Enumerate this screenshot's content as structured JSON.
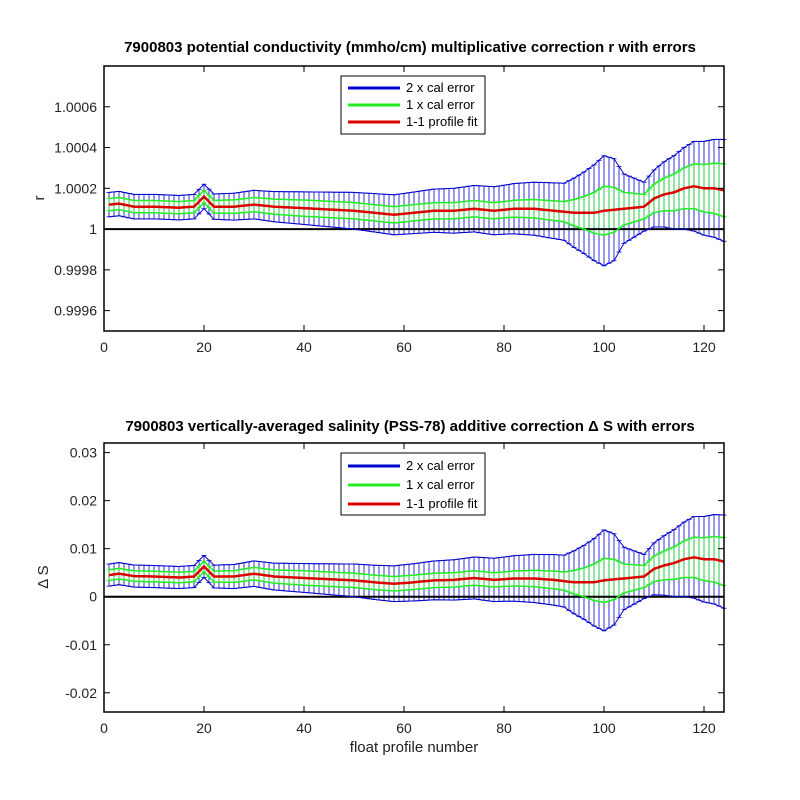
{
  "chart_data": [
    {
      "type": "line",
      "title": "7900803 potential conductivity (mmho/cm) multiplicative correction r with errors",
      "xlabel": "",
      "ylabel": "r",
      "xlim": [
        0,
        124
      ],
      "ylim": [
        0.9995,
        1.0008
      ],
      "xticks": [
        0,
        20,
        40,
        60,
        80,
        100,
        120
      ],
      "xtick_labels": [
        "0",
        "20",
        "40",
        "60",
        "80",
        "100",
        "120"
      ],
      "yticks": [
        0.9996,
        0.9998,
        1,
        1.0002,
        1.0004,
        1.0006
      ],
      "ytick_labels": [
        "0.9996",
        "0.9998",
        "1",
        "1.0002",
        "1.0004",
        "1.0006"
      ],
      "reference_line": 1,
      "legend": {
        "placement": "top-center"
      },
      "fit_control_points": {
        "x": [
          1,
          3,
          6,
          10,
          15,
          18,
          20,
          22,
          26,
          30,
          34,
          38,
          42,
          46,
          50,
          54,
          58,
          62,
          66,
          70,
          74,
          78,
          82,
          86,
          90,
          94,
          98,
          100,
          104,
          108,
          110,
          112,
          114,
          116,
          118,
          120,
          122,
          124
        ],
        "y": [
          1.00012,
          1.000125,
          1.00011,
          1.00011,
          1.000105,
          1.00011,
          1.00016,
          1.00011,
          1.00011,
          1.00012,
          1.00011,
          1.000105,
          1.0001,
          1.000095,
          1.00009,
          1.00008,
          1.00007,
          1.00008,
          1.00009,
          1.00009,
          1.0001,
          1.00009,
          1.0001,
          1.0001,
          1.00009,
          1.00008,
          1.00008,
          1.00009,
          1.0001,
          1.00011,
          1.00015,
          1.00017,
          1.00018,
          1.0002,
          1.00021,
          1.0002,
          1.0002,
          1.00019
        ]
      },
      "err1_control_points": {
        "x": [
          1,
          20,
          40,
          60,
          80,
          92,
          96,
          100,
          102,
          104,
          108,
          112,
          118,
          124
        ],
        "y": [
          3e-05,
          3e-05,
          4e-05,
          4e-05,
          4e-05,
          5e-05,
          8e-05,
          0.00012,
          0.00011,
          8e-05,
          6e-05,
          8e-05,
          0.00011,
          0.00013
        ]
      },
      "err2_control_points": {
        "x": [
          1,
          20,
          40,
          60,
          80,
          92,
          96,
          100,
          102,
          104,
          108,
          112,
          118,
          124
        ],
        "y": [
          6e-05,
          6e-05,
          8e-05,
          0.0001,
          0.00012,
          0.00014,
          0.0002,
          0.00027,
          0.00025,
          0.00017,
          0.00012,
          0.00016,
          0.00022,
          0.00025
        ]
      },
      "series": [
        {
          "name": "2 x cal error",
          "color": "#0000cc"
        },
        {
          "name": "1 x cal error",
          "color": "#22ee22"
        },
        {
          "name": "1-1 profile fit",
          "color": "#dd0000"
        }
      ]
    },
    {
      "type": "line",
      "title": "7900803 vertically-averaged salinity (PSS-78) additive correction Δ S with errors",
      "xlabel": "float profile number",
      "ylabel": "Δ S",
      "xlim": [
        0,
        124
      ],
      "ylim": [
        -0.024,
        0.032
      ],
      "xticks": [
        0,
        20,
        40,
        60,
        80,
        100,
        120
      ],
      "xtick_labels": [
        "0",
        "20",
        "40",
        "60",
        "80",
        "100",
        "120"
      ],
      "yticks": [
        -0.02,
        -0.01,
        0,
        0.01,
        0.02,
        0.03
      ],
      "ytick_labels": [
        "-0.02",
        "-0.01",
        "0",
        "0.01",
        "0.02",
        "0.03"
      ],
      "reference_line": 0,
      "legend": {
        "placement": "top-center"
      },
      "fit_control_points": {
        "x": [
          1,
          3,
          6,
          10,
          15,
          18,
          20,
          22,
          26,
          30,
          34,
          38,
          42,
          46,
          50,
          54,
          58,
          62,
          66,
          70,
          74,
          78,
          82,
          86,
          90,
          94,
          98,
          100,
          104,
          108,
          110,
          112,
          114,
          116,
          118,
          120,
          122,
          124
        ],
        "y": [
          0.0045,
          0.0048,
          0.0043,
          0.0042,
          0.004,
          0.0042,
          0.0063,
          0.0042,
          0.0042,
          0.0048,
          0.0042,
          0.004,
          0.0038,
          0.0036,
          0.0034,
          0.003,
          0.0027,
          0.003,
          0.0034,
          0.0035,
          0.0039,
          0.0035,
          0.0038,
          0.0038,
          0.0035,
          0.003,
          0.003,
          0.0034,
          0.0038,
          0.0042,
          0.0058,
          0.0065,
          0.007,
          0.0078,
          0.0082,
          0.0078,
          0.0078,
          0.0073
        ]
      },
      "err1_control_points": {
        "x": [
          1,
          20,
          40,
          60,
          80,
          92,
          96,
          100,
          102,
          104,
          108,
          112,
          118,
          124
        ],
        "y": [
          0.0011,
          0.0011,
          0.0015,
          0.0015,
          0.0015,
          0.0019,
          0.003,
          0.0046,
          0.0042,
          0.003,
          0.0023,
          0.003,
          0.0042,
          0.005
        ]
      },
      "err2_control_points": {
        "x": [
          1,
          20,
          40,
          60,
          80,
          92,
          96,
          100,
          102,
          104,
          108,
          112,
          118,
          124
        ],
        "y": [
          0.0023,
          0.0023,
          0.003,
          0.0038,
          0.0046,
          0.0054,
          0.0077,
          0.0105,
          0.0095,
          0.0065,
          0.0046,
          0.0062,
          0.0085,
          0.0097
        ]
      },
      "series": [
        {
          "name": "2 x cal error",
          "color": "#0000cc"
        },
        {
          "name": "1 x cal error",
          "color": "#22ee22"
        },
        {
          "name": "1-1 profile fit",
          "color": "#dd0000"
        }
      ]
    }
  ]
}
